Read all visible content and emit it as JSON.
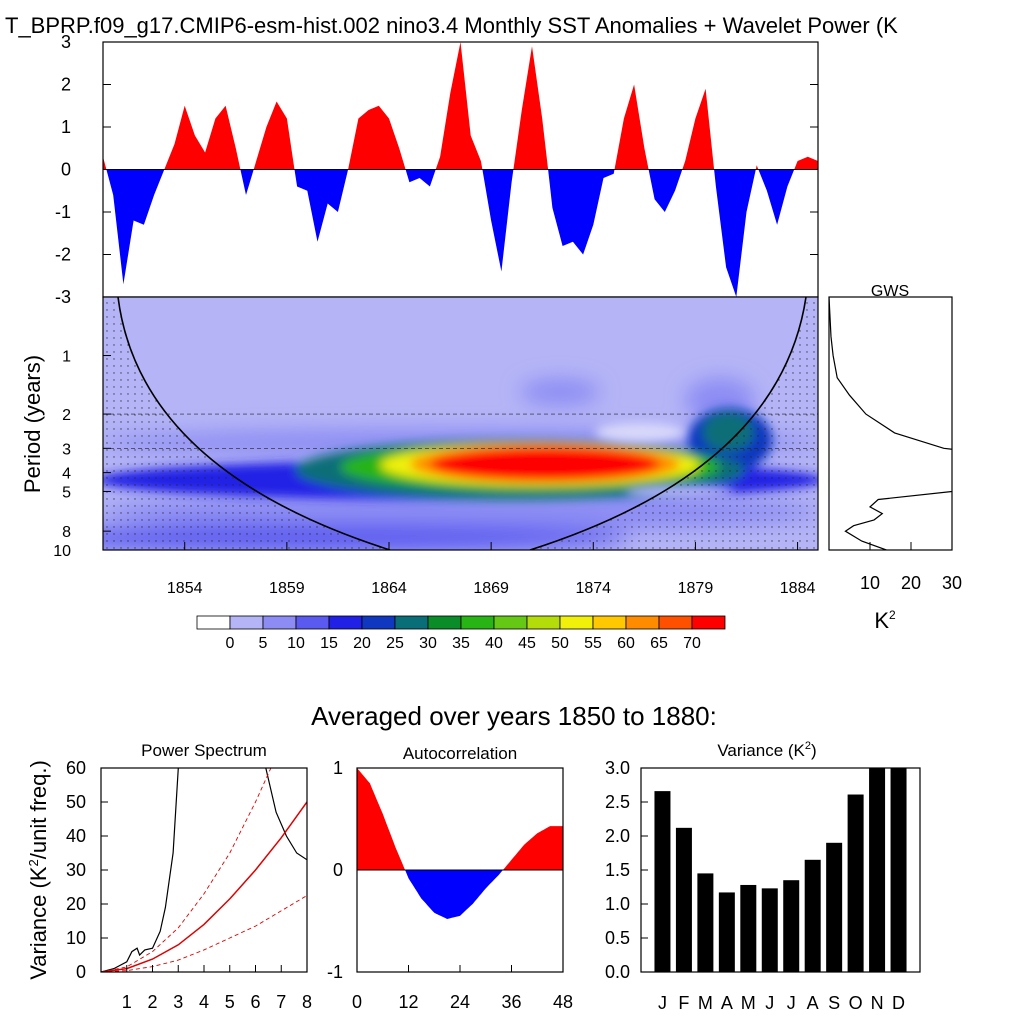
{
  "header": {
    "title": "T_BPRP.f09_g17.CMIP6-esm-hist.002 nino3.4 Monthly SST Anomalies + Wavelet Power (K"
  },
  "colors": {
    "positive": "#ff0000",
    "negative": "#0000ff",
    "bars": "#000000",
    "red_noise": "#e00000"
  },
  "chart_data": [
    {
      "type": "area",
      "id": "sst-anomaly",
      "x_range": [
        1850,
        1885
      ],
      "ylim": [
        -3,
        3
      ],
      "yticks": [
        "3",
        "2",
        "1",
        "0",
        "-1",
        "-2",
        "-3"
      ],
      "x": [
        1850.0,
        1850.5,
        1851.0,
        1851.5,
        1852.0,
        1852.5,
        1853.0,
        1853.5,
        1854.0,
        1854.5,
        1855.0,
        1855.5,
        1856.0,
        1856.5,
        1857.0,
        1857.5,
        1858.0,
        1858.5,
        1859.0,
        1859.5,
        1860.0,
        1860.5,
        1861.0,
        1861.5,
        1862.0,
        1862.5,
        1863.0,
        1863.5,
        1864.0,
        1864.5,
        1865.0,
        1865.5,
        1866.0,
        1866.5,
        1867.0,
        1867.5,
        1868.0,
        1868.5,
        1869.0,
        1869.5,
        1870.0,
        1870.5,
        1871.0,
        1871.5,
        1872.0,
        1872.5,
        1873.0,
        1873.5,
        1874.0,
        1874.5,
        1875.0,
        1875.5,
        1876.0,
        1876.5,
        1877.0,
        1877.5,
        1878.0,
        1878.5,
        1879.0,
        1879.5,
        1880.0,
        1880.5,
        1881.0,
        1881.5,
        1882.0,
        1882.5,
        1883.0,
        1883.5,
        1884.0,
        1884.5,
        1885.0
      ],
      "values": [
        0.3,
        -0.6,
        -2.7,
        -1.2,
        -1.3,
        -0.6,
        0.0,
        0.6,
        1.5,
        0.8,
        0.4,
        1.2,
        1.5,
        0.5,
        -0.6,
        0.2,
        1.0,
        1.6,
        1.2,
        -0.4,
        -0.5,
        -1.7,
        -0.8,
        -1.0,
        0.0,
        1.2,
        1.4,
        1.5,
        1.2,
        0.5,
        -0.3,
        -0.2,
        -0.4,
        0.3,
        1.8,
        3.0,
        0.8,
        0.2,
        -1.2,
        -2.4,
        -0.3,
        1.4,
        2.9,
        1.2,
        -0.9,
        -1.8,
        -1.7,
        -2.0,
        -1.3,
        -0.2,
        -0.1,
        1.2,
        2.0,
        0.5,
        -0.7,
        -1.0,
        -0.5,
        0.2,
        1.2,
        1.9,
        -0.4,
        -2.3,
        -3.0,
        -1.0,
        0.1,
        -0.5,
        -1.3,
        -0.4,
        0.2,
        0.3,
        0.2
      ]
    },
    {
      "type": "heatmap",
      "id": "wavelet-power",
      "ylabel": "Period (years)",
      "xticks": [
        "1854",
        "1859",
        "1864",
        "1869",
        "1874",
        "1879",
        "1884"
      ],
      "xtick_values": [
        1854,
        1859,
        1864,
        1869,
        1874,
        1879,
        1884
      ],
      "yticks": [
        "1",
        "2",
        "3",
        "4",
        "5",
        "8",
        "10"
      ],
      "ytick_values": [
        1,
        2,
        3,
        4,
        5,
        8,
        10
      ],
      "period_range": [
        0.5,
        10
      ],
      "dashed_period_lines": [
        2,
        3
      ],
      "colorbar_labels": [
        "0",
        "5",
        "10",
        "15",
        "20",
        "25",
        "30",
        "35",
        "40",
        "45",
        "50",
        "55",
        "60",
        "65",
        "70"
      ],
      "colorbar_colors": [
        "#ffffff",
        "#b4b4f6",
        "#8c8cf4",
        "#5a5af0",
        "#2020e6",
        "#1037c0",
        "#0a6e78",
        "#0a8c28",
        "#28b414",
        "#64c814",
        "#b4dc0a",
        "#f0f00a",
        "#ffc800",
        "#ff8c00",
        "#ff5000",
        "#ff0000"
      ],
      "peak_blob": {
        "center_year": 1870,
        "center_period": 4,
        "max_power": 75
      }
    },
    {
      "type": "line",
      "id": "gws",
      "title": "GWS",
      "xlabel": "K²",
      "xlim": [
        0,
        30
      ],
      "xticks": [
        "10",
        "20",
        "30"
      ],
      "period": [
        0.5,
        0.8,
        1.0,
        1.3,
        1.6,
        2.0,
        2.5,
        3.0,
        3.2,
        3.5,
        4.0,
        4.5,
        5.0,
        5.5,
        6.0,
        6.5,
        7.0,
        7.5,
        8.0,
        9.0,
        10.0
      ],
      "power": [
        0.0,
        0.5,
        1.0,
        2.0,
        5.0,
        9.0,
        16.0,
        28.0,
        40.0,
        40.0,
        40.0,
        40.0,
        30.0,
        12.0,
        10.0,
        13.0,
        11.0,
        6.0,
        4.0,
        8.0,
        14.0
      ]
    },
    {
      "type": "line",
      "id": "power-spectrum",
      "title": "Power Spectrum",
      "ylabel": "Variance (K²/unit freq.)",
      "xlim": [
        0,
        8
      ],
      "ylim": [
        0,
        60
      ],
      "xticks": [
        "1",
        "2",
        "3",
        "4",
        "5",
        "6",
        "7",
        "8"
      ],
      "yticks": [
        "0",
        "10",
        "20",
        "30",
        "40",
        "50",
        "60"
      ],
      "series": [
        {
          "x": [
            0.0,
            0.5,
            1.0,
            1.2,
            1.4,
            1.5,
            1.7,
            2.0,
            2.3,
            2.5,
            2.8,
            3.0
          ],
          "values": [
            0.0,
            1.0,
            3.0,
            6.0,
            7.0,
            5.0,
            6.5,
            7.0,
            12.0,
            19.0,
            35.0,
            60.0
          ]
        },
        {
          "x": [
            6.4,
            6.8,
            7.2,
            7.6,
            8.0
          ],
          "values": [
            60.0,
            47.0,
            40.0,
            35.0,
            33.0
          ]
        },
        {
          "x": [
            0,
            1,
            2,
            3,
            4,
            5,
            6,
            7,
            8
          ],
          "values": [
            0.0,
            1.0,
            3.8,
            8.0,
            14.0,
            21.5,
            30.0,
            39.5,
            50.0
          ]
        },
        {
          "x": [
            0,
            1,
            2,
            3,
            4,
            5,
            6,
            6.6
          ],
          "values": [
            0.0,
            1.5,
            6.0,
            13.0,
            23.0,
            35.0,
            50.0,
            60.0
          ]
        },
        {
          "x": [
            0,
            1,
            2,
            3,
            4,
            5,
            6,
            7,
            8
          ],
          "values": [
            0.0,
            0.4,
            1.6,
            3.5,
            6.5,
            10.0,
            13.5,
            18.0,
            22.5
          ]
        }
      ]
    },
    {
      "type": "area",
      "id": "autocorrelation",
      "title": "Autocorrelation",
      "xlim": [
        0,
        48
      ],
      "ylim": [
        -1,
        1
      ],
      "xticks": [
        "0",
        "12",
        "24",
        "36",
        "48"
      ],
      "xtick_values": [
        0,
        12,
        24,
        36,
        48
      ],
      "yticks": [
        "1",
        "0",
        "-1"
      ],
      "x": [
        0,
        3,
        6,
        9,
        12,
        15,
        18,
        21,
        24,
        27,
        30,
        33,
        36,
        39,
        42,
        45,
        48
      ],
      "values": [
        1.0,
        0.85,
        0.55,
        0.22,
        -0.08,
        -0.28,
        -0.42,
        -0.48,
        -0.45,
        -0.33,
        -0.18,
        -0.05,
        0.1,
        0.25,
        0.36,
        0.43,
        0.43
      ]
    },
    {
      "type": "bar",
      "id": "monthly-variance",
      "title": "Variance (K²)",
      "categories": [
        "J",
        "F",
        "M",
        "A",
        "M",
        "J",
        "J",
        "A",
        "S",
        "O",
        "N",
        "D"
      ],
      "values": [
        2.66,
        2.12,
        1.45,
        1.17,
        1.28,
        1.23,
        1.35,
        1.65,
        1.9,
        2.61,
        3.0,
        3.0
      ],
      "ylim": [
        0,
        3
      ],
      "yticks": [
        "0.0",
        "0.5",
        "1.0",
        "1.5",
        "2.0",
        "2.5",
        "3.0"
      ]
    }
  ],
  "section": {
    "averaged_title": "Averaged over years 1850 to 1880:"
  }
}
